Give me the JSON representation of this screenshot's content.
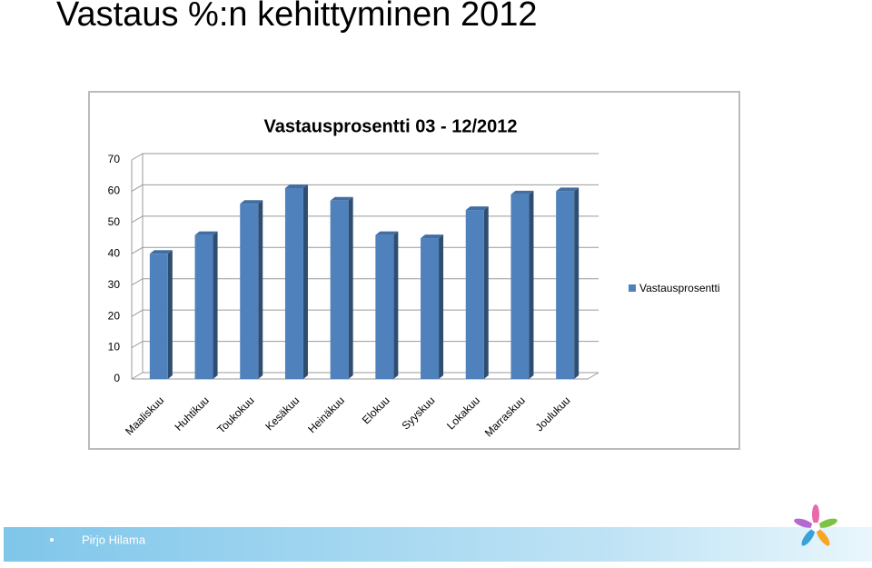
{
  "slide": {
    "title": "Vastaus %:n kehittyminen 2012",
    "footer": "Pirjo Hilama"
  },
  "chart_data": {
    "type": "bar",
    "title": "Vastausprosentti 03 - 12/2012",
    "categories": [
      "Maaliskuu",
      "Huhtikuu",
      "Toukokuu",
      "Kesäkuu",
      "Heinäkuu",
      "Elokuu",
      "Syyskuu",
      "Lokakuu",
      "Marraskuu",
      "Joulukuu"
    ],
    "series": [
      {
        "name": "Vastausprosentti",
        "color": "#4f81bd",
        "values": [
          40,
          46,
          56,
          61,
          57,
          46,
          45,
          54,
          59,
          60
        ]
      }
    ],
    "ylim": [
      0,
      70
    ],
    "yticks": [
      0,
      10,
      20,
      30,
      40,
      50,
      60,
      70
    ],
    "grid": true,
    "legend": "right"
  }
}
